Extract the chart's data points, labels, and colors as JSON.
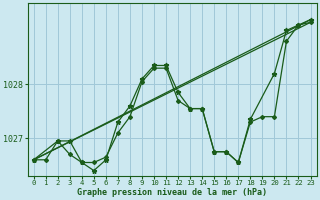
{
  "title": "Graphe pression niveau de la mer (hPa)",
  "bg_color": "#cce8f0",
  "grid_color": "#a0c8d8",
  "line_color": "#1a5c1a",
  "xlim": [
    -0.5,
    23.5
  ],
  "ylim": [
    1026.3,
    1029.5
  ],
  "yticks": [
    1027,
    1028
  ],
  "xticks": [
    0,
    1,
    2,
    3,
    4,
    5,
    6,
    7,
    8,
    9,
    10,
    11,
    12,
    13,
    14,
    15,
    16,
    17,
    18,
    19,
    20,
    21,
    22,
    23
  ],
  "series": [
    {
      "x": [
        0,
        1,
        2,
        3,
        4,
        5,
        6,
        7,
        8,
        9,
        10,
        11,
        12,
        13,
        14,
        15,
        16,
        17,
        18,
        19,
        20,
        21,
        22,
        23
      ],
      "y": [
        1026.6,
        1026.6,
        1026.95,
        1026.7,
        1026.55,
        1026.55,
        1026.65,
        1027.1,
        1027.4,
        1028.05,
        1028.3,
        1028.3,
        1027.7,
        1027.55,
        1027.55,
        1026.75,
        1026.75,
        1026.55,
        1027.3,
        1027.4,
        1027.4,
        1028.8,
        1029.1,
        1029.15
      ]
    },
    {
      "x": [
        0,
        2,
        3,
        4,
        5,
        6,
        7,
        8,
        9,
        10,
        11,
        12,
        13,
        14,
        15,
        16,
        17,
        18,
        20,
        21,
        22,
        23
      ],
      "y": [
        1026.6,
        1026.95,
        1026.95,
        1026.55,
        1026.4,
        1026.6,
        1027.3,
        1027.6,
        1028.1,
        1028.35,
        1028.35,
        1027.85,
        1027.55,
        1027.55,
        1026.75,
        1026.75,
        1026.55,
        1027.35,
        1028.2,
        1029.0,
        1029.1,
        1029.2
      ]
    },
    {
      "x": [
        0,
        23
      ],
      "y": [
        1026.6,
        1029.2
      ]
    },
    {
      "x": [
        0,
        23
      ],
      "y": [
        1026.6,
        1029.15
      ]
    }
  ]
}
